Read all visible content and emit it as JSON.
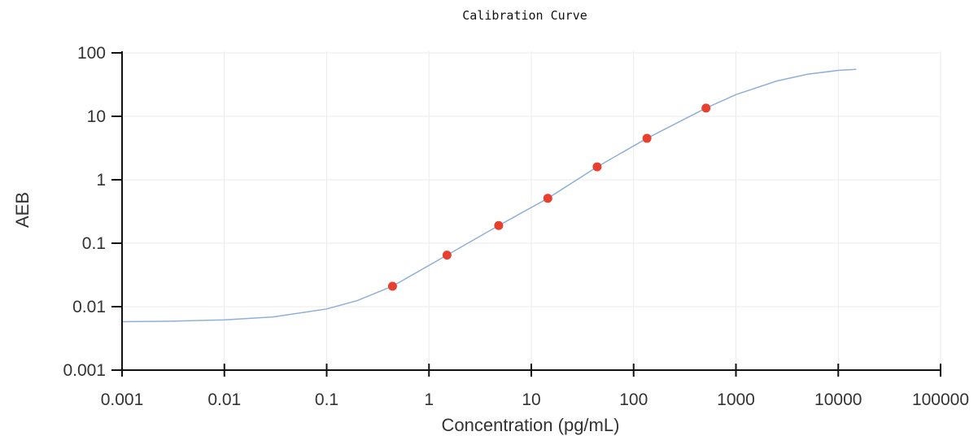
{
  "chart_data": {
    "type": "scatter",
    "title": "Calibration Curve",
    "xlabel": "Concentration (pg/mL)",
    "ylabel": "AEB",
    "xscale": "log",
    "yscale": "log",
    "xlim": [
      0.001,
      100000
    ],
    "ylim": [
      0.001,
      100
    ],
    "xticks": [
      {
        "value": 0.001,
        "label": "0.001"
      },
      {
        "value": 0.01,
        "label": "0.01"
      },
      {
        "value": 0.1,
        "label": "0.1"
      },
      {
        "value": 1,
        "label": "1"
      },
      {
        "value": 10,
        "label": "10"
      },
      {
        "value": 100,
        "label": "100"
      },
      {
        "value": 1000,
        "label": "1000"
      },
      {
        "value": 10000,
        "label": "10000"
      },
      {
        "value": 100000,
        "label": "100000"
      }
    ],
    "yticks": [
      {
        "value": 0.001,
        "label": "0.001"
      },
      {
        "value": 0.01,
        "label": "0.01"
      },
      {
        "value": 0.1,
        "label": "0.1"
      },
      {
        "value": 1,
        "label": "1"
      },
      {
        "value": 10,
        "label": "10"
      },
      {
        "value": 100,
        "label": "100"
      }
    ],
    "grid": true,
    "series": [
      {
        "type": "scatter",
        "color": "#e8402e",
        "points": [
          {
            "x": 0.44,
            "y": 0.021
          },
          {
            "x": 1.5,
            "y": 0.065
          },
          {
            "x": 4.8,
            "y": 0.19
          },
          {
            "x": 14.5,
            "y": 0.51
          },
          {
            "x": 44,
            "y": 1.6
          },
          {
            "x": 135,
            "y": 4.5
          },
          {
            "x": 510,
            "y": 13.5
          }
        ]
      },
      {
        "type": "line",
        "color": "#8fb0d6",
        "points": [
          {
            "x": 0.001,
            "y": 0.0058
          },
          {
            "x": 0.003,
            "y": 0.0059
          },
          {
            "x": 0.01,
            "y": 0.0062
          },
          {
            "x": 0.03,
            "y": 0.0069
          },
          {
            "x": 0.1,
            "y": 0.0092
          },
          {
            "x": 0.2,
            "y": 0.0125
          },
          {
            "x": 0.44,
            "y": 0.021
          },
          {
            "x": 1.5,
            "y": 0.065
          },
          {
            "x": 4.8,
            "y": 0.19
          },
          {
            "x": 14.5,
            "y": 0.51
          },
          {
            "x": 44,
            "y": 1.6
          },
          {
            "x": 135,
            "y": 4.5
          },
          {
            "x": 510,
            "y": 13.5
          },
          {
            "x": 1000,
            "y": 22
          },
          {
            "x": 2500,
            "y": 36
          },
          {
            "x": 5000,
            "y": 46
          },
          {
            "x": 10000,
            "y": 53
          },
          {
            "x": 15000,
            "y": 55
          }
        ]
      }
    ]
  }
}
